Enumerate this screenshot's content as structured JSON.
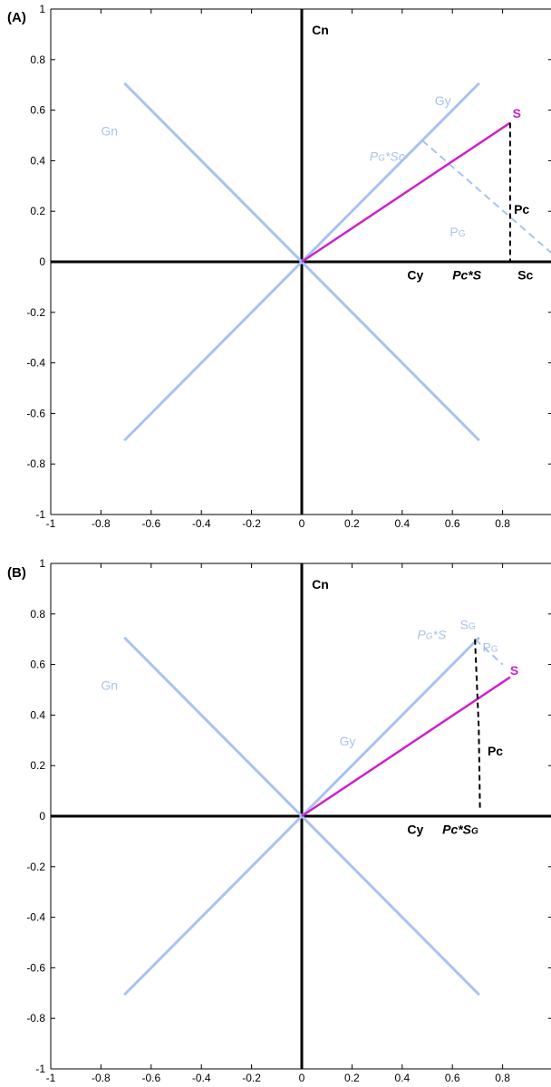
{
  "colors": {
    "axis": "#000000",
    "light_blue": "#a9c2f0",
    "magenta": "#cc22cc",
    "dashed_black": "#000000"
  },
  "chart_data": [
    {
      "panel": "(A)",
      "type": "line",
      "xlim": [
        -1,
        1
      ],
      "ylim": [
        -1,
        1
      ],
      "xticks": [
        "-1",
        "-0.8",
        "-0.6",
        "-0.4",
        "-0.2",
        "0",
        "0.2",
        "0.4",
        "0.6",
        "0.8"
      ],
      "yticks": [
        "1",
        "0.8",
        "0.6",
        "0.4",
        "0.2",
        "0",
        "-0.2",
        "-0.4",
        "-0.6",
        "-0.8",
        "-1"
      ],
      "lines": {
        "diag_pos": {
          "x": [
            -0.707,
            0.707
          ],
          "y": [
            -0.707,
            0.707
          ]
        },
        "diag_neg": {
          "x": [
            -0.707,
            0.707
          ],
          "y": [
            0.707,
            -0.707
          ]
        },
        "S": {
          "x": [
            0,
            0.83
          ],
          "y": [
            0,
            0.55
          ]
        },
        "Pc": {
          "x": [
            0.83,
            0.83
          ],
          "y": [
            0.55,
            0
          ]
        },
        "PG": {
          "x": [
            0.48,
            1.0
          ],
          "y": [
            0.48,
            0.03
          ]
        }
      },
      "annotations": {
        "Cn": "Cn",
        "Cy": "Cy",
        "Gn": "Gn",
        "Gy": "Gy",
        "S": "S",
        "Pc": "Pc",
        "PG": "PG",
        "PG_Sc": "PG*Sc",
        "Pc_S": "Pc*S",
        "Sc": "Sc"
      }
    },
    {
      "panel": "(B)",
      "type": "line",
      "xlim": [
        -1,
        1
      ],
      "ylim": [
        -1,
        1
      ],
      "xticks": [
        "-1",
        "-0.8",
        "-0.6",
        "-0.4",
        "-0.2",
        "0",
        "0.2",
        "0.4",
        "0.6",
        "0.8"
      ],
      "yticks": [
        "1",
        "0.8",
        "0.6",
        "0.4",
        "0.2",
        "0",
        "-0.2",
        "-0.4",
        "-0.6",
        "-0.8",
        "-1"
      ],
      "lines": {
        "diag_pos": {
          "x": [
            -0.707,
            0.707
          ],
          "y": [
            -0.707,
            0.707
          ]
        },
        "diag_neg": {
          "x": [
            -0.707,
            0.707
          ],
          "y": [
            0.707,
            -0.707
          ]
        },
        "S": {
          "x": [
            0,
            0.83
          ],
          "y": [
            0,
            0.55
          ]
        },
        "Pc": {
          "x": [
            0.69,
            0.705,
            0.71
          ],
          "y": [
            0.7,
            0.35,
            0.02
          ]
        },
        "PG": {
          "x": [
            0.69,
            0.8
          ],
          "y": [
            0.7,
            0.6
          ]
        }
      },
      "annotations": {
        "Cn": "Cn",
        "Cy": "Cy",
        "Gn": "Gn",
        "Gy": "Gy",
        "S": "S",
        "Pc": "Pc",
        "PG": "PG",
        "SG": "SG",
        "PG_S": "PG*S",
        "Pc_SG": "Pc*SG"
      }
    }
  ]
}
